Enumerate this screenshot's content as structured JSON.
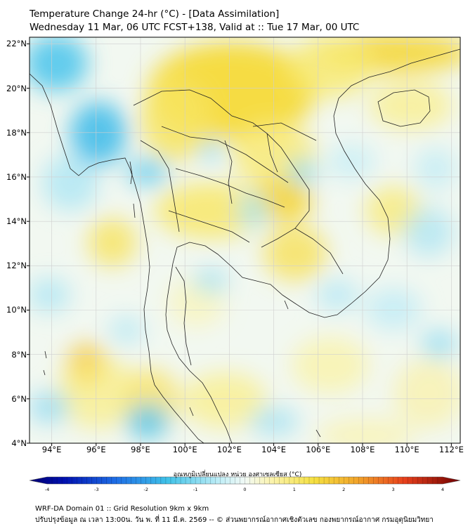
{
  "header": {
    "title_line1": "Temperature Change 24-hr (°C) - [Data Assimilation]",
    "title_line2": "Wednesday 11 Mar, 06 UTC FCST+138, Valid at :: Tue 17 Mar, 00 UTC"
  },
  "map": {
    "lat_range": [
      4,
      22.3
    ],
    "lon_range": [
      93,
      112.4
    ],
    "lat_labels": [
      "22°N",
      "20°N",
      "18°N",
      "16°N",
      "14°N",
      "12°N",
      "10°N",
      "8°N",
      "6°N",
      "4°N"
    ],
    "lat_values": [
      22,
      20,
      18,
      16,
      14,
      12,
      10,
      8,
      6,
      4
    ],
    "lon_labels": [
      "94°E",
      "96°E",
      "98°E",
      "100°E",
      "102°E",
      "104°E",
      "106°E",
      "108°E",
      "110°E",
      "112°E"
    ],
    "lon_values": [
      94,
      96,
      98,
      100,
      102,
      104,
      106,
      108,
      110,
      112
    ],
    "gridlines": true
  },
  "colorbar": {
    "title": "อุณหภูมิเปลี่ยนแปลง หน่วย องศาเซลเซียส (°C)",
    "min": -4,
    "max": 4,
    "tick_labels": [
      "-4",
      "-3",
      "-2",
      "-1",
      "0",
      "1",
      "2",
      "3",
      "4"
    ],
    "tick_values": [
      -4,
      -3,
      -2,
      -1,
      0,
      1,
      2,
      3,
      4
    ]
  },
  "footer": {
    "line1": "WRF-DA Domain 01 :: Grid Resolution 9km x 9km",
    "line2": "ปรับปรุงข้อมูล ณ เวลา 13:00น. วัน พ. ที่ 11 มี.ค. 2569 -- © ส่วนพยากรณ์อากาศเชิงตัวเลข กองพยากรณ์อากาศ กรมอุตุนิยมวิทยา"
  },
  "colors": {
    "cold": "#3fc2e8",
    "neutral": "#eef6f6",
    "warm": "#f5e45a",
    "warmer": "#f3c640",
    "coastline": "#222222",
    "grid": "#cfcfcf"
  }
}
